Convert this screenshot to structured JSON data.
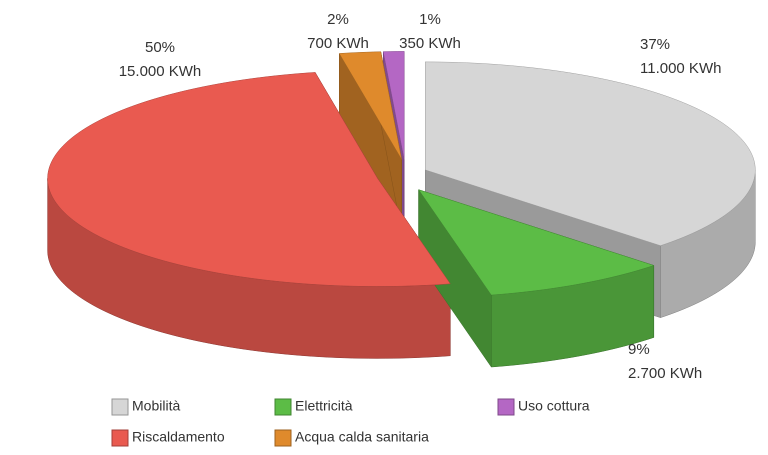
{
  "chart_data": {
    "type": "pie3d",
    "series": [
      {
        "name": "Mobilità",
        "color": "#d6d6d6",
        "values": [
          37
        ]
      },
      {
        "name": "Elettricità",
        "color": "#5cbc46",
        "values": [
          9
        ]
      },
      {
        "name": "Riscaldamento",
        "color": "#e95a50",
        "values": [
          50
        ]
      },
      {
        "name": "Acqua calda sanitaria",
        "color": "#df8a2c",
        "values": [
          2
        ]
      },
      {
        "name": "Uso cottura",
        "color": "#b467c4",
        "values": [
          1
        ]
      }
    ],
    "value_labels": [
      "37%",
      "9%",
      "50%",
      "2%",
      "1%"
    ],
    "energy_labels": [
      "11.000 KWh",
      "2.700 KWh",
      "15.000 KWh",
      "700 KWh",
      "350 KWh"
    ],
    "legend": true
  }
}
